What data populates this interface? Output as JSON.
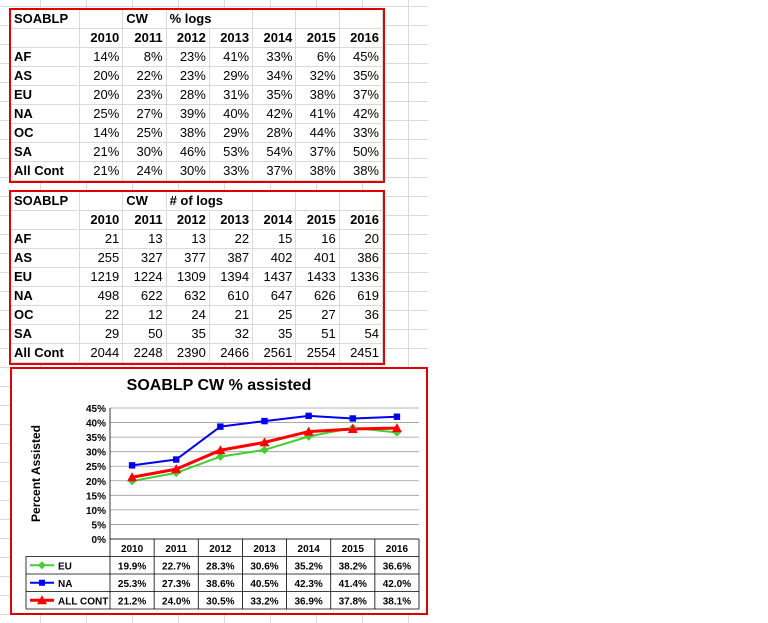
{
  "table1": {
    "h1": "SOABLP",
    "h2": "CW",
    "h3": "% logs",
    "years": [
      "2010",
      "2011",
      "2012",
      "2013",
      "2014",
      "2015",
      "2016"
    ],
    "rows": [
      {
        "label": "AF",
        "values": [
          "14%",
          "8%",
          "23%",
          "41%",
          "33%",
          "6%",
          "45%"
        ]
      },
      {
        "label": "AS",
        "values": [
          "20%",
          "22%",
          "23%",
          "29%",
          "34%",
          "32%",
          "35%"
        ]
      },
      {
        "label": "EU",
        "values": [
          "20%",
          "23%",
          "28%",
          "31%",
          "35%",
          "38%",
          "37%"
        ]
      },
      {
        "label": "NA",
        "values": [
          "25%",
          "27%",
          "39%",
          "40%",
          "42%",
          "41%",
          "42%"
        ]
      },
      {
        "label": "OC",
        "values": [
          "14%",
          "25%",
          "38%",
          "29%",
          "28%",
          "44%",
          "33%"
        ]
      },
      {
        "label": "SA",
        "values": [
          "21%",
          "30%",
          "46%",
          "53%",
          "54%",
          "37%",
          "50%"
        ]
      },
      {
        "label": "All Cont",
        "values": [
          "21%",
          "24%",
          "30%",
          "33%",
          "37%",
          "38%",
          "38%"
        ]
      }
    ]
  },
  "table2": {
    "h1": "SOABLP",
    "h2": "CW",
    "h3": "# of logs",
    "years": [
      "2010",
      "2011",
      "2012",
      "2013",
      "2014",
      "2015",
      "2016"
    ],
    "rows": [
      {
        "label": "AF",
        "values": [
          "21",
          "13",
          "13",
          "22",
          "15",
          "16",
          "20"
        ]
      },
      {
        "label": "AS",
        "values": [
          "255",
          "327",
          "377",
          "387",
          "402",
          "401",
          "386"
        ]
      },
      {
        "label": "EU",
        "values": [
          "1219",
          "1224",
          "1309",
          "1394",
          "1437",
          "1433",
          "1336"
        ]
      },
      {
        "label": "NA",
        "values": [
          "498",
          "622",
          "632",
          "610",
          "647",
          "626",
          "619"
        ]
      },
      {
        "label": "OC",
        "values": [
          "22",
          "12",
          "24",
          "21",
          "25",
          "27",
          "36"
        ]
      },
      {
        "label": "SA",
        "values": [
          "29",
          "50",
          "35",
          "32",
          "35",
          "51",
          "54"
        ]
      },
      {
        "label": "All Cont",
        "values": [
          "2044",
          "2248",
          "2390",
          "2466",
          "2561",
          "2554",
          "2451"
        ]
      }
    ]
  },
  "chart_data": {
    "type": "line",
    "title": "SOABLP CW % assisted",
    "ylabel": "Percent Assisted",
    "xlabel": "",
    "categories": [
      "2010",
      "2011",
      "2012",
      "2013",
      "2014",
      "2015",
      "2016"
    ],
    "ylim": [
      0,
      45
    ],
    "yticks": [
      "0%",
      "5%",
      "10%",
      "15%",
      "20%",
      "25%",
      "30%",
      "35%",
      "40%",
      "45%"
    ],
    "grid": true,
    "legend": "data-table-bottom",
    "series": [
      {
        "name": "EU",
        "color": "#44cc33",
        "marker": "diamond",
        "values": [
          19.9,
          22.7,
          28.3,
          30.6,
          35.2,
          38.2,
          36.6
        ],
        "labels": [
          "19.9%",
          "22.7%",
          "28.3%",
          "30.6%",
          "35.2%",
          "38.2%",
          "36.6%"
        ]
      },
      {
        "name": "NA",
        "color": "#0000ee",
        "marker": "square",
        "values": [
          25.3,
          27.3,
          38.6,
          40.5,
          42.3,
          41.4,
          42.0
        ],
        "labels": [
          "25.3%",
          "27.3%",
          "38.6%",
          "40.5%",
          "42.3%",
          "41.4%",
          "42.0%"
        ]
      },
      {
        "name": "ALL CONT",
        "color": "#ff0000",
        "marker": "triangle",
        "values": [
          21.2,
          24.0,
          30.5,
          33.2,
          36.9,
          37.8,
          38.1
        ],
        "labels": [
          "21.2%",
          "24.0%",
          "30.5%",
          "33.2%",
          "36.9%",
          "37.8%",
          "38.1%"
        ]
      }
    ]
  }
}
